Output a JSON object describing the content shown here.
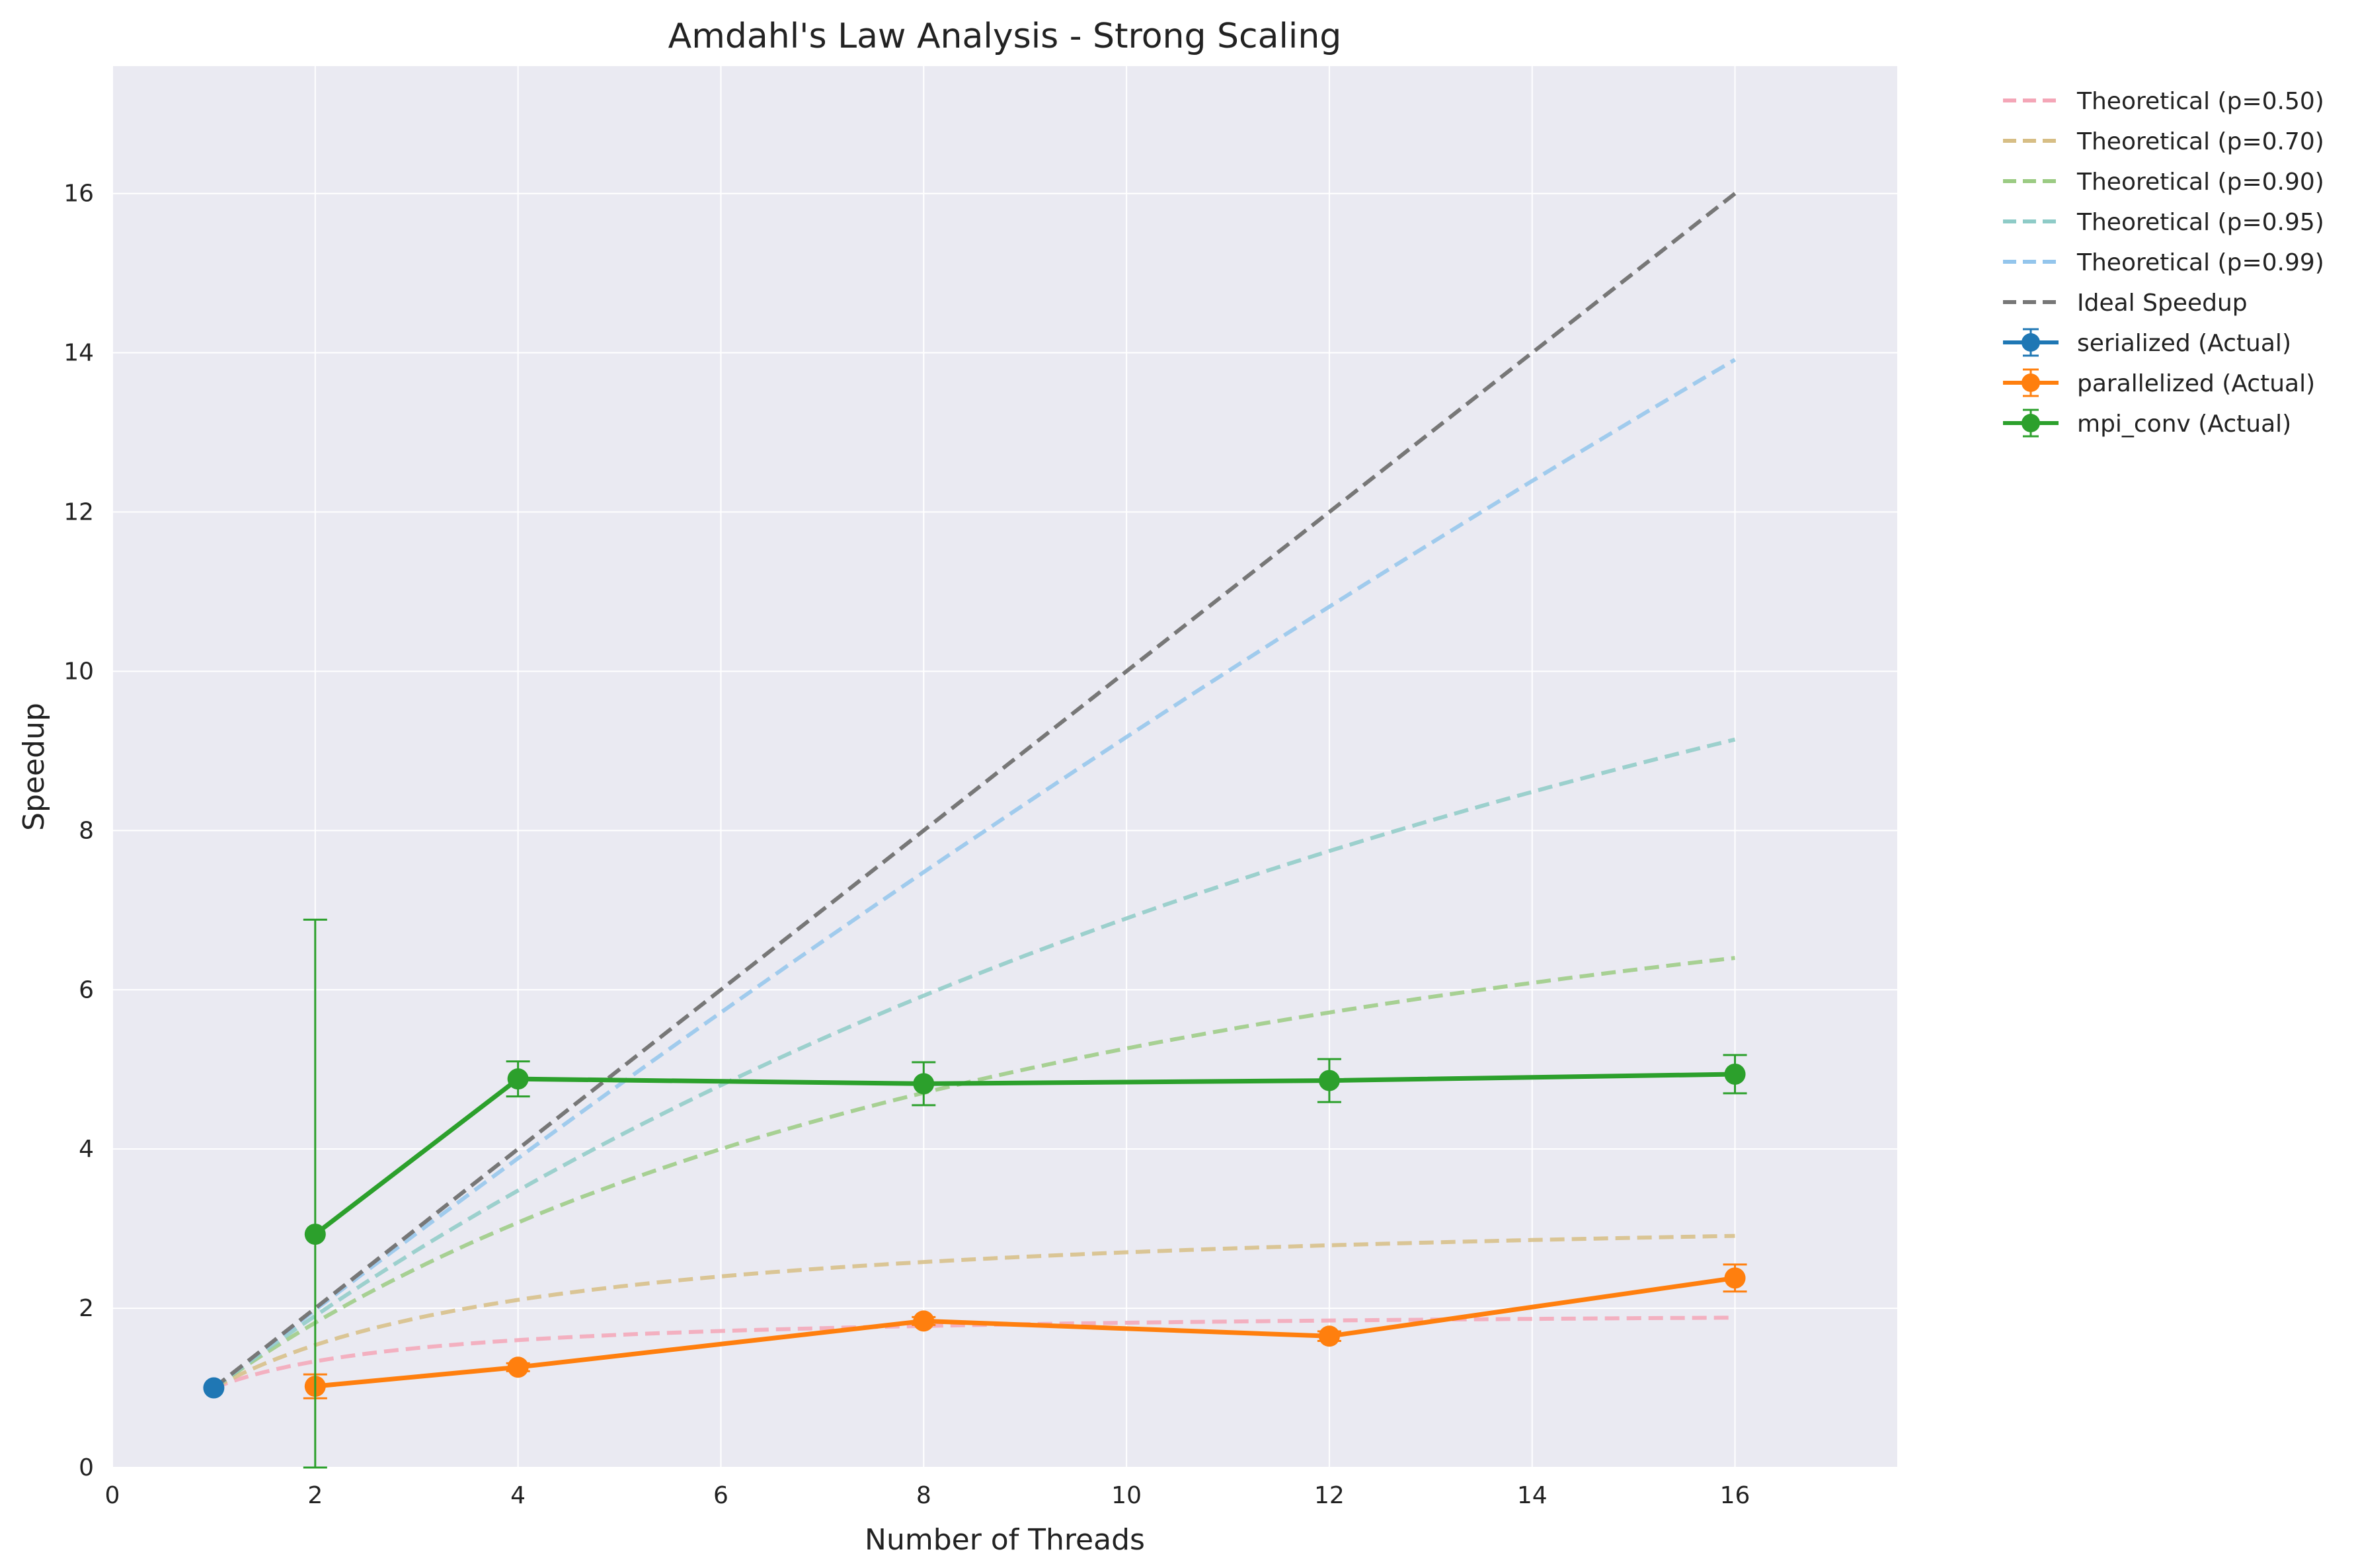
{
  "chart_data": {
    "type": "line",
    "title": "Amdahl's Law Analysis - Strong Scaling",
    "xlabel": "Number of Threads",
    "ylabel": "Speedup",
    "xlim": [
      0,
      17.6
    ],
    "ylim": [
      0,
      17.6
    ],
    "xticks": [
      0,
      2,
      4,
      6,
      8,
      10,
      12,
      14,
      16
    ],
    "yticks": [
      0,
      2,
      4,
      6,
      8,
      10,
      12,
      14,
      16
    ],
    "grid": true,
    "legend_position": "outside-top-right",
    "plot_background": "#EAEAF2",
    "theoretical_series": [
      {
        "name": "Theoretical (p=0.50)",
        "p": 0.5,
        "color": "#F4A6B7",
        "x_range": [
          1,
          16
        ]
      },
      {
        "name": "Theoretical (p=0.70)",
        "p": 0.7,
        "color": "#D7BE85",
        "x_range": [
          1,
          16
        ]
      },
      {
        "name": "Theoretical (p=0.90)",
        "p": 0.9,
        "color": "#9BCB83",
        "x_range": [
          1,
          16
        ]
      },
      {
        "name": "Theoretical (p=0.95)",
        "p": 0.95,
        "color": "#8ECBC7",
        "x_range": [
          1,
          16
        ]
      },
      {
        "name": "Theoretical (p=0.99)",
        "p": 0.99,
        "color": "#93C5EC",
        "x_range": [
          1,
          16
        ]
      }
    ],
    "ideal": {
      "name": "Ideal Speedup",
      "color": "#777777",
      "x": [
        1,
        16
      ],
      "y": [
        1,
        16
      ]
    },
    "actual_series": [
      {
        "name": "serialized (Actual)",
        "color": "#1F77B4",
        "x": [
          1
        ],
        "y": [
          1.0
        ],
        "err": [
          0.0
        ]
      },
      {
        "name": "parallelized (Actual)",
        "color": "#FF7F0E",
        "x": [
          2,
          4,
          8,
          12,
          16
        ],
        "y": [
          1.02,
          1.26,
          1.84,
          1.65,
          2.38
        ],
        "err": [
          0.15,
          0.05,
          0.05,
          0.06,
          0.17
        ]
      },
      {
        "name": "mpi_conv (Actual)",
        "color": "#2CA02C",
        "x": [
          2,
          4,
          8,
          12,
          16
        ],
        "y": [
          2.93,
          4.88,
          4.82,
          4.86,
          4.94
        ],
        "err": [
          3.95,
          0.22,
          0.27,
          0.27,
          0.24
        ]
      }
    ]
  }
}
